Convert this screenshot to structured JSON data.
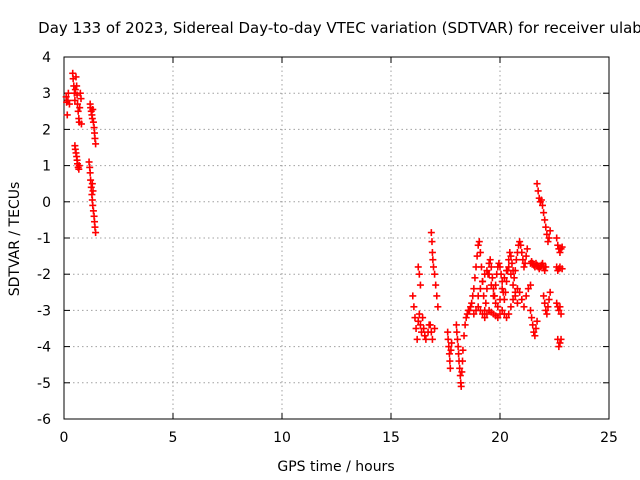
{
  "chart_data": {
    "type": "scatter",
    "title": "Day 133 of 2023, Sidereal Day-to-day VTEC variation (SDTVAR) for receiver ulab",
    "xlabel": "GPS time / hours",
    "ylabel": "SDTVAR / TECUs",
    "xlim": [
      0,
      25
    ],
    "ylim": [
      -6,
      4
    ],
    "xticks": [
      0,
      5,
      10,
      15,
      20,
      25
    ],
    "yticks": [
      -6,
      -5,
      -4,
      -3,
      -2,
      -1,
      0,
      1,
      2,
      3,
      4
    ],
    "grid": true,
    "marker": "+",
    "marker_color": "#ff0000",
    "series": [
      {
        "name": "SDTVAR",
        "points": [
          [
            0.1,
            2.9
          ],
          [
            0.12,
            2.75
          ],
          [
            0.15,
            2.4
          ],
          [
            0.18,
            2.8
          ],
          [
            0.2,
            3.0
          ],
          [
            0.25,
            2.7
          ],
          [
            0.4,
            3.55
          ],
          [
            0.42,
            3.4
          ],
          [
            0.45,
            3.2
          ],
          [
            0.48,
            3.0
          ],
          [
            0.5,
            2.8
          ],
          [
            0.52,
            3.1
          ],
          [
            0.55,
            3.45
          ],
          [
            0.58,
            3.2
          ],
          [
            0.6,
            2.95
          ],
          [
            0.62,
            2.7
          ],
          [
            0.65,
            2.5
          ],
          [
            0.68,
            2.3
          ],
          [
            0.7,
            2.2
          ],
          [
            0.72,
            2.6
          ],
          [
            0.75,
            3.0
          ],
          [
            0.78,
            2.85
          ],
          [
            0.8,
            2.15
          ],
          [
            0.5,
            1.55
          ],
          [
            0.52,
            1.45
          ],
          [
            0.55,
            1.35
          ],
          [
            0.58,
            1.25
          ],
          [
            0.6,
            1.15
          ],
          [
            0.62,
            1.05
          ],
          [
            0.65,
            0.95
          ],
          [
            0.68,
            0.9
          ],
          [
            0.7,
            1.0
          ],
          [
            1.2,
            2.7
          ],
          [
            1.22,
            2.6
          ],
          [
            1.25,
            2.5
          ],
          [
            1.28,
            2.4
          ],
          [
            1.3,
            2.3
          ],
          [
            1.32,
            2.55
          ],
          [
            1.35,
            2.2
          ],
          [
            1.38,
            2.05
          ],
          [
            1.4,
            1.9
          ],
          [
            1.42,
            1.75
          ],
          [
            1.45,
            1.6
          ],
          [
            1.15,
            1.1
          ],
          [
            1.18,
            0.95
          ],
          [
            1.2,
            0.8
          ],
          [
            1.22,
            0.6
          ],
          [
            1.25,
            0.4
          ],
          [
            1.28,
            0.2
          ],
          [
            1.3,
            0.05
          ],
          [
            1.32,
            -0.1
          ],
          [
            1.35,
            -0.25
          ],
          [
            1.38,
            -0.4
          ],
          [
            1.4,
            -0.55
          ],
          [
            1.42,
            -0.7
          ],
          [
            1.45,
            -0.85
          ],
          [
            1.3,
            0.5
          ],
          [
            1.33,
            0.3
          ],
          [
            16.0,
            -2.6
          ],
          [
            16.05,
            -2.9
          ],
          [
            16.1,
            -3.2
          ],
          [
            16.15,
            -3.5
          ],
          [
            16.2,
            -3.8
          ],
          [
            16.25,
            -3.3
          ],
          [
            16.3,
            -3.1
          ],
          [
            16.35,
            -3.4
          ],
          [
            16.4,
            -3.6
          ],
          [
            16.45,
            -3.2
          ],
          [
            16.5,
            -3.5
          ],
          [
            16.55,
            -3.7
          ],
          [
            16.25,
            -1.8
          ],
          [
            16.3,
            -2.0
          ],
          [
            16.35,
            -2.3
          ],
          [
            16.6,
            -3.8
          ],
          [
            16.7,
            -3.6
          ],
          [
            16.75,
            -3.4
          ],
          [
            16.85,
            -0.85
          ],
          [
            16.88,
            -1.1
          ],
          [
            16.9,
            -1.4
          ],
          [
            16.92,
            -1.6
          ],
          [
            16.95,
            -1.8
          ],
          [
            17.0,
            -2.0
          ],
          [
            17.05,
            -2.3
          ],
          [
            17.1,
            -2.6
          ],
          [
            17.15,
            -2.9
          ],
          [
            16.8,
            -3.4
          ],
          [
            16.85,
            -3.6
          ],
          [
            16.9,
            -3.8
          ],
          [
            17.0,
            -3.5
          ],
          [
            17.6,
            -3.6
          ],
          [
            17.62,
            -3.8
          ],
          [
            17.65,
            -4.0
          ],
          [
            17.68,
            -4.2
          ],
          [
            17.7,
            -4.4
          ],
          [
            17.72,
            -4.6
          ],
          [
            17.75,
            -4.1
          ],
          [
            17.78,
            -3.9
          ],
          [
            18.0,
            -3.4
          ],
          [
            18.02,
            -3.6
          ],
          [
            18.05,
            -3.8
          ],
          [
            18.08,
            -4.0
          ],
          [
            18.1,
            -4.2
          ],
          [
            18.12,
            -4.4
          ],
          [
            18.15,
            -4.6
          ],
          [
            18.18,
            -4.8
          ],
          [
            18.2,
            -5.0
          ],
          [
            18.22,
            -5.1
          ],
          [
            18.25,
            -4.7
          ],
          [
            18.28,
            -4.4
          ],
          [
            18.3,
            -4.1
          ],
          [
            18.35,
            -3.7
          ],
          [
            18.4,
            -3.4
          ],
          [
            18.45,
            -3.2
          ],
          [
            18.5,
            -3.1
          ],
          [
            18.55,
            -3.0
          ],
          [
            18.6,
            -3.0
          ],
          [
            18.65,
            -2.9
          ],
          [
            18.7,
            -2.8
          ],
          [
            18.75,
            -2.6
          ],
          [
            18.8,
            -2.4
          ],
          [
            18.85,
            -2.1
          ],
          [
            18.9,
            -1.8
          ],
          [
            18.95,
            -1.5
          ],
          [
            19.0,
            -1.2
          ],
          [
            19.05,
            -1.1
          ],
          [
            19.1,
            -1.4
          ],
          [
            19.15,
            -1.8
          ],
          [
            19.2,
            -2.2
          ],
          [
            19.25,
            -2.6
          ],
          [
            19.3,
            -3.0
          ],
          [
            19.35,
            -2.8
          ],
          [
            19.4,
            -2.4
          ],
          [
            19.45,
            -2.0
          ],
          [
            19.5,
            -1.7
          ],
          [
            19.55,
            -1.6
          ],
          [
            19.6,
            -1.8
          ],
          [
            19.65,
            -2.1
          ],
          [
            19.7,
            -2.4
          ],
          [
            19.75,
            -2.6
          ],
          [
            19.8,
            -2.3
          ],
          [
            19.85,
            -2.0
          ],
          [
            19.9,
            -1.8
          ],
          [
            19.95,
            -1.7
          ],
          [
            20.0,
            -1.8
          ],
          [
            20.05,
            -2.0
          ],
          [
            20.1,
            -2.2
          ],
          [
            20.15,
            -2.5
          ],
          [
            20.2,
            -2.7
          ],
          [
            20.25,
            -2.5
          ],
          [
            20.3,
            -2.2
          ],
          [
            20.35,
            -1.9
          ],
          [
            20.4,
            -1.6
          ],
          [
            20.45,
            -1.4
          ],
          [
            20.5,
            -1.5
          ],
          [
            20.55,
            -1.7
          ],
          [
            20.6,
            -1.9
          ],
          [
            20.65,
            -2.1
          ],
          [
            20.7,
            -1.9
          ],
          [
            20.75,
            -1.6
          ],
          [
            20.8,
            -1.4
          ],
          [
            20.85,
            -1.2
          ],
          [
            20.9,
            -1.1
          ],
          [
            20.95,
            -1.2
          ],
          [
            21.0,
            -1.4
          ],
          [
            21.05,
            -1.6
          ],
          [
            21.1,
            -1.8
          ],
          [
            21.15,
            -1.7
          ],
          [
            21.2,
            -1.5
          ],
          [
            21.25,
            -1.3
          ],
          [
            18.8,
            -3.1
          ],
          [
            18.9,
            -3.0
          ],
          [
            19.0,
            -2.9
          ],
          [
            19.1,
            -3.0
          ],
          [
            19.2,
            -3.1
          ],
          [
            19.3,
            -3.2
          ],
          [
            19.4,
            -3.1
          ],
          [
            19.5,
            -3.0
          ],
          [
            19.6,
            -3.05
          ],
          [
            19.7,
            -3.1
          ],
          [
            19.8,
            -3.15
          ],
          [
            19.9,
            -3.2
          ],
          [
            20.0,
            -3.1
          ],
          [
            20.1,
            -3.0
          ],
          [
            20.2,
            -3.1
          ],
          [
            20.3,
            -3.2
          ],
          [
            20.4,
            -3.1
          ],
          [
            20.5,
            -2.9
          ],
          [
            20.6,
            -2.7
          ],
          [
            20.7,
            -2.5
          ],
          [
            20.8,
            -2.4
          ],
          [
            20.9,
            -2.5
          ],
          [
            21.0,
            -2.7
          ],
          [
            21.1,
            -2.9
          ],
          [
            21.2,
            -2.6
          ],
          [
            21.3,
            -2.4
          ],
          [
            21.4,
            -2.3
          ],
          [
            19.0,
            -2.6
          ],
          [
            19.1,
            -2.4
          ],
          [
            19.2,
            -2.2
          ],
          [
            19.3,
            -2.0
          ],
          [
            19.4,
            -1.9
          ],
          [
            19.5,
            -2.0
          ],
          [
            19.6,
            -2.3
          ],
          [
            19.7,
            -2.6
          ],
          [
            19.8,
            -2.8
          ],
          [
            19.9,
            -2.9
          ],
          [
            20.0,
            -2.7
          ],
          [
            20.1,
            -2.4
          ],
          [
            20.2,
            -2.1
          ],
          [
            20.3,
            -1.9
          ],
          [
            20.4,
            -1.8
          ],
          [
            20.5,
            -2.0
          ],
          [
            20.6,
            -2.3
          ],
          [
            20.7,
            -2.6
          ],
          [
            20.8,
            -2.8
          ],
          [
            21.4,
            -1.7
          ],
          [
            21.45,
            -1.65
          ],
          [
            21.5,
            -1.7
          ],
          [
            21.55,
            -1.75
          ],
          [
            21.6,
            -1.8
          ],
          [
            21.65,
            -1.7
          ],
          [
            21.7,
            -1.75
          ],
          [
            21.75,
            -1.8
          ],
          [
            21.8,
            -1.85
          ],
          [
            21.85,
            -1.8
          ],
          [
            21.9,
            -1.75
          ],
          [
            21.95,
            -1.7
          ],
          [
            22.0,
            -1.8
          ],
          [
            22.05,
            -1.9
          ],
          [
            22.1,
            -1.8
          ],
          [
            21.4,
            -3.0
          ],
          [
            21.45,
            -3.2
          ],
          [
            21.5,
            -3.4
          ],
          [
            21.55,
            -3.6
          ],
          [
            21.6,
            -3.7
          ],
          [
            21.65,
            -3.5
          ],
          [
            21.7,
            -3.3
          ],
          [
            21.7,
            0.5
          ],
          [
            21.75,
            0.3
          ],
          [
            21.8,
            0.1
          ],
          [
            21.85,
            0.0
          ],
          [
            21.9,
            0.05
          ],
          [
            21.95,
            -0.1
          ],
          [
            22.0,
            -0.3
          ],
          [
            22.05,
            -0.5
          ],
          [
            22.1,
            -0.7
          ],
          [
            22.15,
            -0.9
          ],
          [
            22.2,
            -1.1
          ],
          [
            22.25,
            -1.0
          ],
          [
            22.3,
            -0.8
          ],
          [
            22.0,
            -2.6
          ],
          [
            22.05,
            -2.8
          ],
          [
            22.1,
            -3.0
          ],
          [
            22.15,
            -3.1
          ],
          [
            22.2,
            -2.9
          ],
          [
            22.25,
            -2.7
          ],
          [
            22.3,
            -2.5
          ],
          [
            22.6,
            -1.0
          ],
          [
            22.65,
            -1.2
          ],
          [
            22.7,
            -1.3
          ],
          [
            22.75,
            -1.4
          ],
          [
            22.8,
            -1.3
          ],
          [
            22.85,
            -1.25
          ],
          [
            22.6,
            -1.8
          ],
          [
            22.65,
            -1.9
          ],
          [
            22.7,
            -1.85
          ],
          [
            22.75,
            -1.8
          ],
          [
            22.85,
            -1.85
          ],
          [
            22.6,
            -2.8
          ],
          [
            22.65,
            -2.9
          ],
          [
            22.7,
            -3.0
          ],
          [
            22.75,
            -2.9
          ],
          [
            22.8,
            -3.1
          ],
          [
            22.65,
            -3.8
          ],
          [
            22.7,
            -4.0
          ],
          [
            22.75,
            -3.9
          ],
          [
            22.8,
            -3.8
          ]
        ]
      }
    ]
  }
}
